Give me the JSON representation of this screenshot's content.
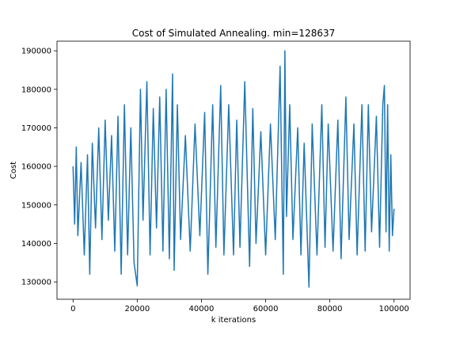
{
  "chart_data": {
    "type": "line",
    "title": "Cost of Simulated Annealing. min=128637",
    "xlabel": "k iterations",
    "ylabel": "Cost",
    "xlim": [
      -5000,
      105000
    ],
    "ylim": [
      125500,
      192500
    ],
    "x_ticks": [
      0,
      20000,
      40000,
      60000,
      80000,
      100000
    ],
    "x_tick_labels": [
      "0",
      "20000",
      "40000",
      "60000",
      "80000",
      "100000"
    ],
    "y_ticks": [
      130000,
      140000,
      150000,
      160000,
      170000,
      180000,
      190000
    ],
    "y_tick_labels": [
      "130000",
      "140000",
      "150000",
      "160000",
      "170000",
      "180000",
      "190000"
    ],
    "grid": false,
    "series": [
      {
        "color": "#1f77b4",
        "x": [
          0,
          500,
          1000,
          1500,
          2500,
          3500,
          4500,
          5200,
          6000,
          7000,
          8000,
          9000,
          10000,
          11000,
          12000,
          13000,
          14000,
          15000,
          16000,
          17000,
          18000,
          19000,
          20000,
          21000,
          21800,
          23000,
          24000,
          25000,
          26000,
          27000,
          28000,
          29000,
          30000,
          31000,
          31500,
          32500,
          33500,
          35000,
          36500,
          38000,
          39500,
          41000,
          42000,
          43500,
          44500,
          46000,
          47000,
          48500,
          50000,
          51000,
          52000,
          53500,
          55000,
          56000,
          57000,
          58500,
          60000,
          61500,
          63000,
          64500,
          65500,
          66000,
          66500,
          67500,
          68500,
          70000,
          71000,
          72000,
          73500,
          74500,
          76000,
          77500,
          78500,
          79500,
          81000,
          82500,
          83500,
          85000,
          86000,
          87500,
          88500,
          90000,
          91000,
          92000,
          93000,
          94500,
          95500,
          96500,
          97000,
          97500,
          98000,
          98500,
          99000,
          99500,
          100000
        ],
        "y": [
          160000,
          145000,
          165000,
          142000,
          161000,
          137000,
          163000,
          132000,
          166000,
          144000,
          170000,
          141000,
          172000,
          146000,
          168000,
          138000,
          173000,
          132000,
          176000,
          137000,
          170000,
          135000,
          129000,
          180000,
          146000,
          182000,
          137000,
          175000,
          144000,
          178000,
          138000,
          180000,
          136000,
          184000,
          133000,
          176000,
          141000,
          168000,
          138000,
          171000,
          142000,
          174000,
          132000,
          176000,
          139000,
          181000,
          137000,
          176000,
          137000,
          172000,
          139000,
          182000,
          134000,
          175000,
          140000,
          169000,
          137000,
          171000,
          141000,
          186000,
          132000,
          190000,
          147000,
          176000,
          141000,
          170000,
          137000,
          166000,
          128637,
          171000,
          137000,
          176000,
          139000,
          171000,
          138000,
          172000,
          136000,
          178000,
          141000,
          171000,
          137000,
          176000,
          138000,
          176000,
          143000,
          173000,
          139000,
          176000,
          181000,
          143000,
          176000,
          138000,
          163000,
          142000,
          149000
        ]
      }
    ]
  }
}
